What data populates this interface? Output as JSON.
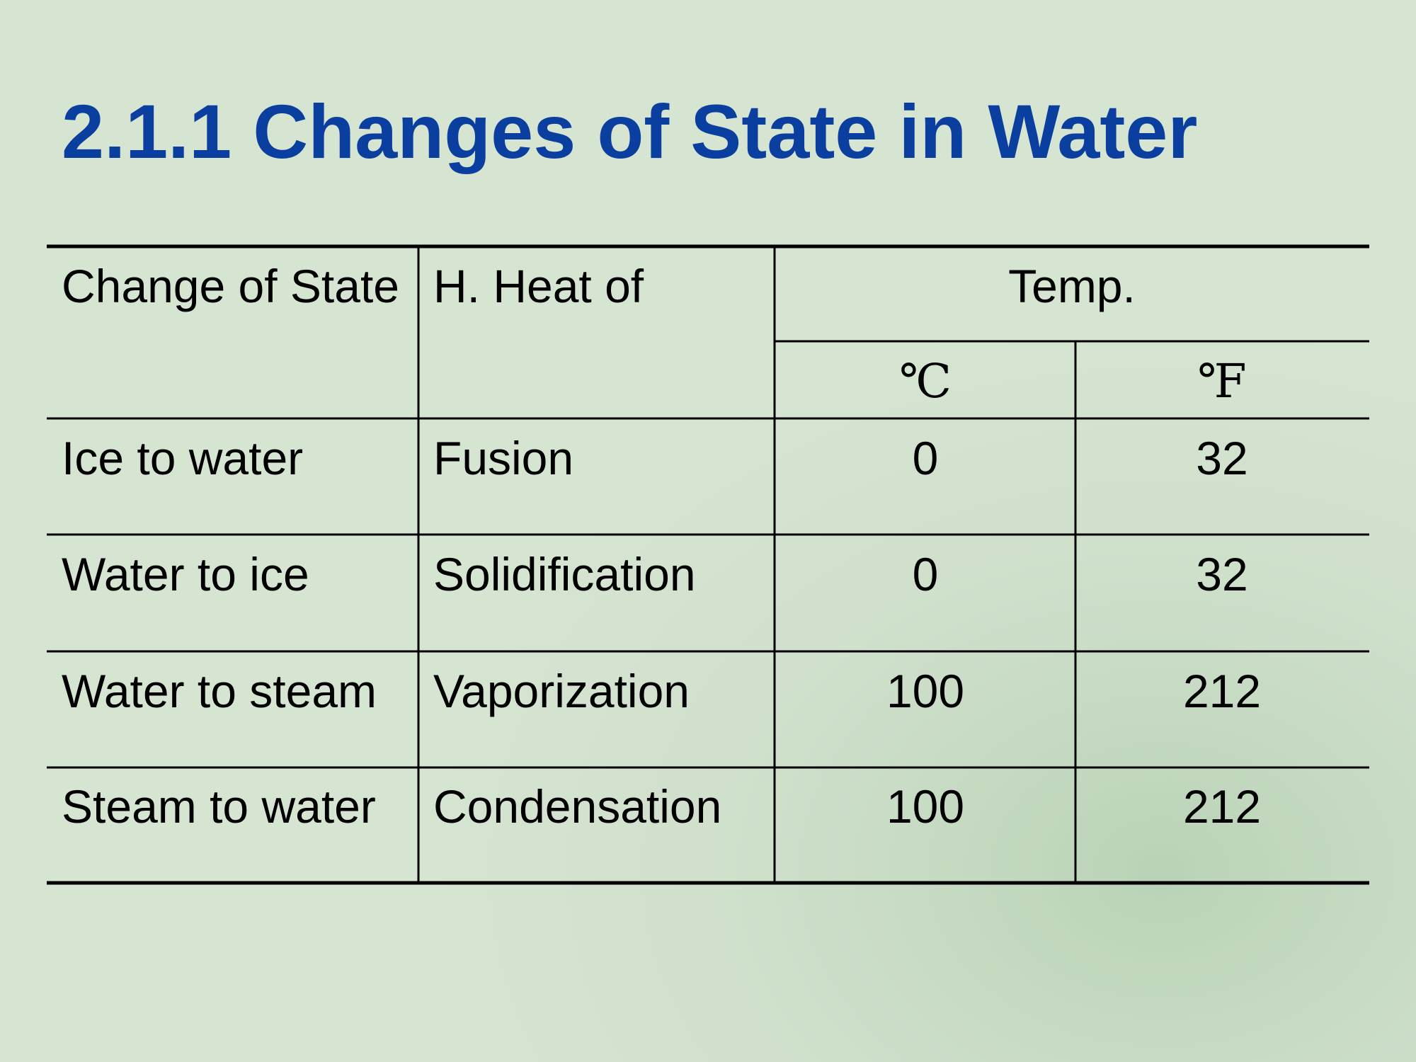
{
  "title": "2.1.1 Changes of State in Water",
  "table": {
    "header": {
      "col1": "Change of State",
      "col2": "H. Heat of",
      "temp": "Temp.",
      "celsius": "℃",
      "fahrenheit": "℉"
    },
    "rows": [
      [
        "Ice to water",
        "Fusion",
        0,
        32
      ],
      [
        "Water to ice",
        "Solidification",
        0,
        32
      ],
      [
        "Water to steam",
        "Vaporization",
        100,
        212
      ],
      [
        "Steam to water",
        "Condensation",
        100,
        212
      ]
    ]
  }
}
